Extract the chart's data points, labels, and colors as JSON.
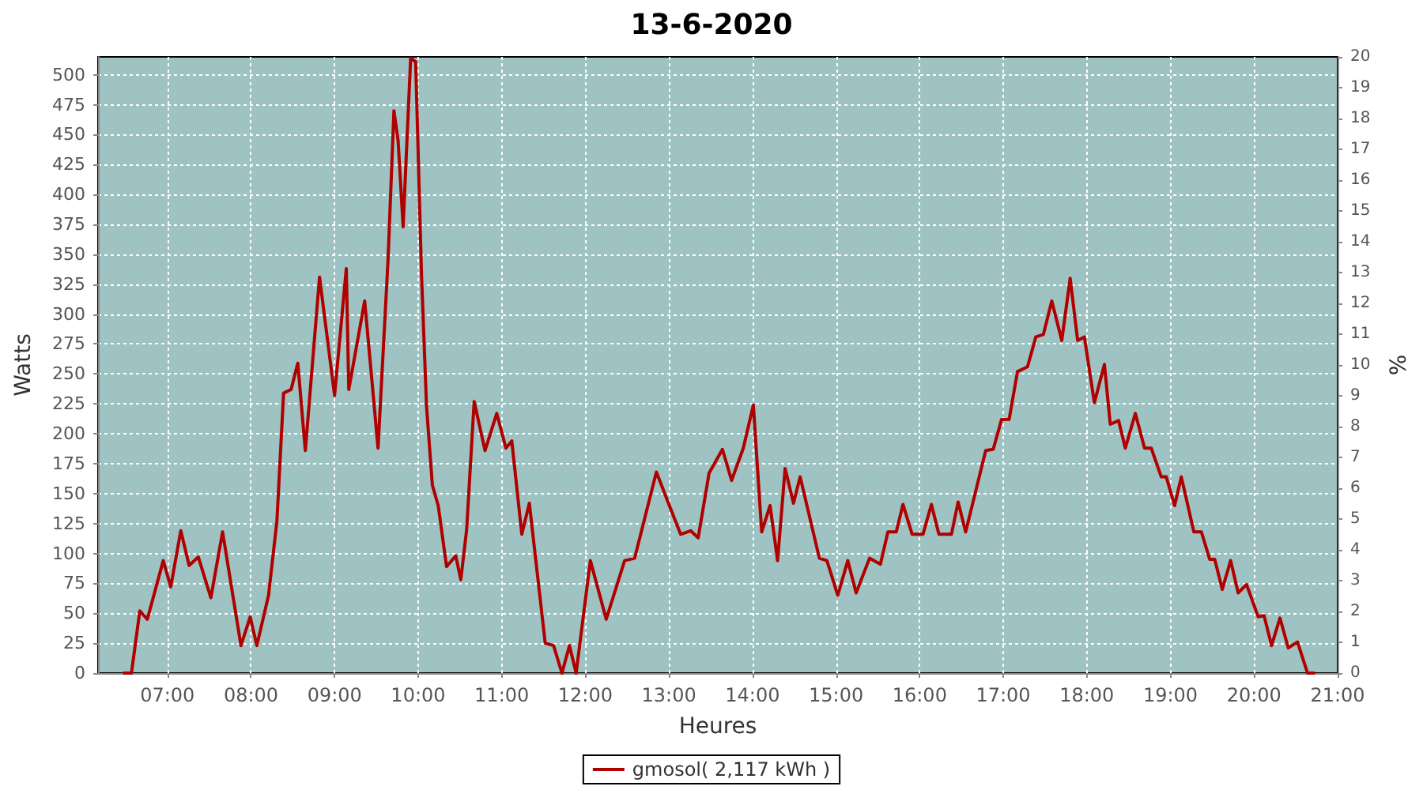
{
  "chart_data": {
    "type": "line",
    "title": "13-6-2020",
    "xlabel": "Heures",
    "ylabel": "Watts",
    "y2label": "%",
    "xlim": [
      6.17,
      21
    ],
    "xticks": [
      {
        "value": 7,
        "label": "07:00"
      },
      {
        "value": 8,
        "label": "08:00"
      },
      {
        "value": 9,
        "label": "09:00"
      },
      {
        "value": 10,
        "label": "10:00"
      },
      {
        "value": 11,
        "label": "11:00"
      },
      {
        "value": 12,
        "label": "12:00"
      },
      {
        "value": 13,
        "label": "13:00"
      },
      {
        "value": 14,
        "label": "14:00"
      },
      {
        "value": 15,
        "label": "15:00"
      },
      {
        "value": 16,
        "label": "16:00"
      },
      {
        "value": 17,
        "label": "17:00"
      },
      {
        "value": 18,
        "label": "18:00"
      },
      {
        "value": 19,
        "label": "19:00"
      },
      {
        "value": 20,
        "label": "20:00"
      },
      {
        "value": 21,
        "label": "21:00"
      }
    ],
    "ylim": [
      0,
      515
    ],
    "yticks": [
      0,
      25,
      50,
      75,
      100,
      125,
      150,
      175,
      200,
      225,
      250,
      275,
      300,
      325,
      350,
      375,
      400,
      425,
      450,
      475,
      500
    ],
    "y2lim": [
      0,
      20
    ],
    "y2ticks": [
      0,
      1,
      2,
      3,
      4,
      5,
      6,
      7,
      8,
      9,
      10,
      11,
      12,
      13,
      14,
      15,
      16,
      17,
      18,
      19,
      20
    ],
    "grid": true,
    "legend": "bottom",
    "line_style": "solid",
    "marker": "none",
    "series": [
      {
        "name": "gmosol( 2,117 kWh )",
        "color": "#b00000",
        "x": [
          6.47,
          6.57,
          6.67,
          6.76,
          6.95,
          7.04,
          7.16,
          7.26,
          7.37,
          7.52,
          7.66,
          7.88,
          7.99,
          8.07,
          8.21,
          8.31,
          8.39,
          8.48,
          8.56,
          8.65,
          8.82,
          9.0,
          9.14,
          9.17,
          9.36,
          9.52,
          9.64,
          9.71,
          9.76,
          9.82,
          9.91,
          9.97,
          10.04,
          10.1,
          10.17,
          10.24,
          10.34,
          10.45,
          10.51,
          10.58,
          10.67,
          10.8,
          10.94,
          11.05,
          11.12,
          11.24,
          11.33,
          11.52,
          11.62,
          11.72,
          11.81,
          11.89,
          12.06,
          12.25,
          12.47,
          12.59,
          12.85,
          13.0,
          13.14,
          13.26,
          13.35,
          13.48,
          13.64,
          13.75,
          13.89,
          14.01,
          14.11,
          14.21,
          14.3,
          14.39,
          14.49,
          14.57,
          14.8,
          14.89,
          15.02,
          15.14,
          15.24,
          15.4,
          15.53,
          15.62,
          15.72,
          15.8,
          15.91,
          16.04,
          16.14,
          16.23,
          16.38,
          16.46,
          16.55,
          16.79,
          16.88,
          16.98,
          17.07,
          17.17,
          17.29,
          17.39,
          17.48,
          17.58,
          17.7,
          17.8,
          17.89,
          17.97,
          18.09,
          18.21,
          18.28,
          18.38,
          18.46,
          18.58,
          18.69,
          18.77,
          18.89,
          18.95,
          19.05,
          19.13,
          19.28,
          19.37,
          19.47,
          19.53,
          19.62,
          19.72,
          19.81,
          19.91,
          20.05,
          20.12,
          20.21,
          20.31,
          20.41,
          20.52,
          20.64,
          20.73
        ],
        "values": [
          0,
          0,
          52,
          45,
          94,
          72,
          119,
          90,
          97,
          63,
          118,
          23,
          47,
          23,
          65,
          127,
          234,
          237,
          259,
          186,
          331,
          232,
          338,
          237,
          311,
          188,
          346,
          470,
          445,
          373,
          514,
          511,
          333,
          223,
          157,
          140,
          89,
          98,
          78,
          120,
          227,
          186,
          217,
          188,
          194,
          116,
          142,
          25,
          23,
          0,
          23,
          0,
          94,
          45,
          94,
          96,
          168,
          141,
          116,
          119,
          113,
          167,
          187,
          161,
          188,
          224,
          118,
          140,
          94,
          171,
          142,
          164,
          96,
          94,
          65,
          94,
          67,
          96,
          91,
          118,
          118,
          141,
          116,
          116,
          141,
          116,
          116,
          143,
          118,
          186,
          187,
          212,
          212,
          252,
          256,
          281,
          283,
          311,
          278,
          330,
          278,
          281,
          226,
          258,
          208,
          211,
          188,
          217,
          188,
          188,
          164,
          164,
          140,
          164,
          118,
          118,
          95,
          95,
          70,
          94,
          67,
          74,
          47,
          48,
          23,
          46,
          21,
          26,
          0,
          0
        ]
      }
    ]
  }
}
